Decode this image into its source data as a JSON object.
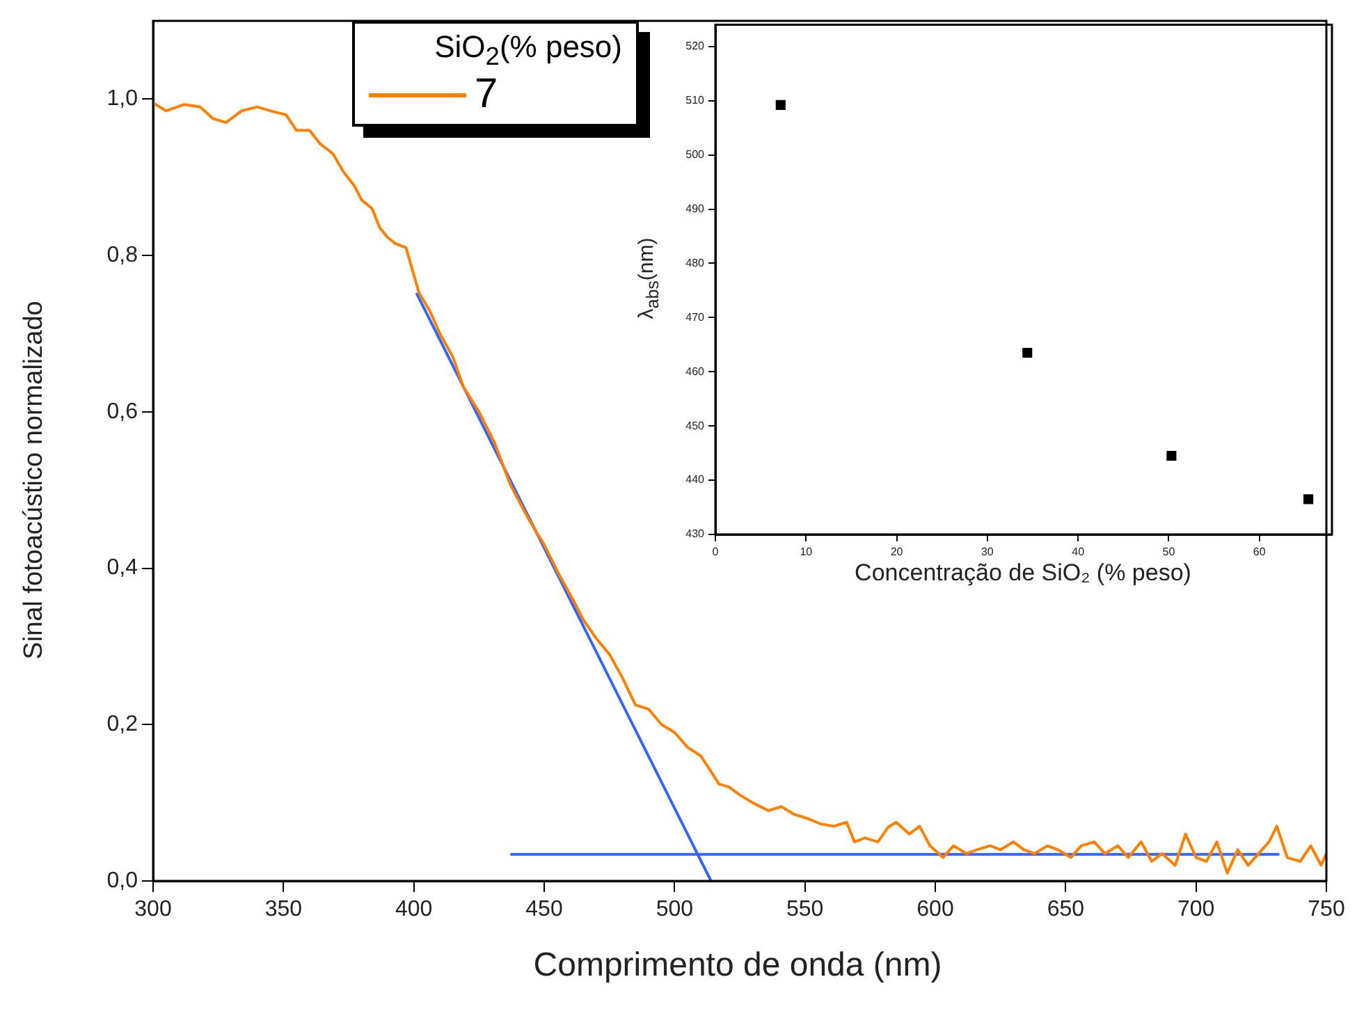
{
  "chart_data": [
    {
      "type": "line",
      "xlabel": "Comprimento de onda  (nm)",
      "ylabel": "Sinal fotoacústico normalizado",
      "legend_title": "SiO$_{2}$(% peso)",
      "legend": "top",
      "grid": false,
      "marker": "none",
      "line_style": "solid",
      "xlim": [
        300,
        750
      ],
      "xticks": [
        300,
        350,
        400,
        450,
        500,
        550,
        600,
        650,
        700,
        750
      ],
      "ylim": [
        0,
        1.1
      ],
      "yticks": [
        {
          "value": 0,
          "label": "0,0"
        },
        {
          "value": 0.2,
          "label": "0,2"
        },
        {
          "value": 0.4,
          "label": "0,4"
        },
        {
          "value": 0.6,
          "label": "0,6"
        },
        {
          "value": 0.8,
          "label": "0,8"
        },
        {
          "value": 1.0,
          "label": "1,0"
        }
      ],
      "series": [
        {
          "name": "7",
          "color": "#ff8000",
          "x": [
            300,
            305,
            312,
            318,
            323,
            328,
            334,
            340,
            346,
            351,
            355,
            360,
            364,
            369,
            373,
            377,
            380,
            384,
            387,
            390,
            393,
            397,
            402,
            406,
            410,
            415,
            419,
            425,
            431,
            437,
            444,
            450,
            456,
            461,
            465,
            470,
            475,
            480,
            485,
            490,
            495,
            500,
            505,
            510,
            514,
            517,
            521,
            525,
            530,
            536,
            541,
            546,
            551,
            556,
            561,
            566,
            569,
            573,
            578,
            582,
            585,
            590,
            594,
            598,
            603,
            607,
            612,
            616,
            621,
            625,
            630,
            634,
            638,
            643,
            647,
            652,
            656,
            661,
            665,
            670,
            674,
            679,
            683,
            687,
            692,
            696,
            700,
            704,
            708,
            712,
            716,
            720,
            724,
            728,
            731,
            735,
            740,
            744,
            748,
            750
          ],
          "values": [
            0.995,
            0.985,
            0.993,
            0.99,
            0.975,
            0.97,
            0.985,
            0.99,
            0.984,
            0.98,
            0.96,
            0.96,
            0.943,
            0.93,
            0.907,
            0.89,
            0.871,
            0.86,
            0.835,
            0.823,
            0.815,
            0.81,
            0.752,
            0.73,
            0.7,
            0.67,
            0.632,
            0.6,
            0.56,
            0.507,
            0.463,
            0.43,
            0.39,
            0.36,
            0.334,
            0.31,
            0.29,
            0.26,
            0.225,
            0.22,
            0.2,
            0.19,
            0.171,
            0.16,
            0.14,
            0.124,
            0.12,
            0.11,
            0.1,
            0.09,
            0.095,
            0.085,
            0.08,
            0.073,
            0.07,
            0.075,
            0.05,
            0.055,
            0.05,
            0.069,
            0.075,
            0.06,
            0.07,
            0.045,
            0.03,
            0.045,
            0.035,
            0.04,
            0.045,
            0.04,
            0.05,
            0.04,
            0.035,
            0.045,
            0.04,
            0.03,
            0.045,
            0.05,
            0.035,
            0.045,
            0.03,
            0.05,
            0.025,
            0.035,
            0.02,
            0.06,
            0.03,
            0.025,
            0.05,
            0.01,
            0.04,
            0.02,
            0.035,
            0.05,
            0.07,
            0.03,
            0.025,
            0.045,
            0.02,
            0.035
          ]
        },
        {
          "color": "#3366ff",
          "x": [
            401,
            514
          ],
          "values": [
            0.752,
            0
          ]
        },
        {
          "color": "#3366ff",
          "x": [
            437,
            732
          ],
          "values": [
            0.034,
            0.034
          ]
        }
      ]
    },
    {
      "type": "scatter",
      "xlabel": "Concentração de SiO₂ (% peso)",
      "ylabel": "λ$_{abs}$(nm)",
      "marker": "square",
      "grid": false,
      "xlim": [
        0,
        68
      ],
      "xticks": [
        0,
        10,
        20,
        30,
        40,
        50,
        60
      ],
      "ylim": [
        430,
        524
      ],
      "yticks": [
        430,
        440,
        450,
        460,
        470,
        480,
        490,
        500,
        510,
        520
      ],
      "series": [
        {
          "color": "#000000",
          "x": [
            7.2,
            34.4,
            50.3,
            65.4
          ],
          "values": [
            509.2,
            463.5,
            444.5,
            436.5
          ]
        }
      ]
    }
  ]
}
